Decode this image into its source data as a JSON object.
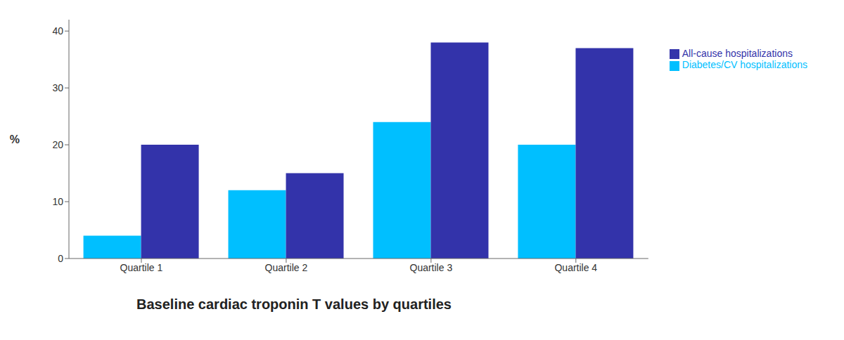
{
  "chart_data": {
    "type": "bar",
    "title": "Baseline cardiac troponin T values by quartiles",
    "ylabel": "%",
    "categories": [
      "Quartile 1",
      "Quartile 2",
      "Quartile 3",
      "Quartile 4"
    ],
    "series": [
      {
        "name": "Diabetes/CV hospitalizations",
        "color": "#00BFFF",
        "values": [
          4,
          12,
          24,
          20
        ]
      },
      {
        "name": "All-cause hospitalizations",
        "color": "#3333AA",
        "values": [
          20,
          15,
          38,
          37
        ]
      }
    ],
    "ylim": [
      0,
      42
    ],
    "yticks": [
      0,
      10,
      20,
      30,
      40
    ],
    "grid": false,
    "legend": "right"
  }
}
